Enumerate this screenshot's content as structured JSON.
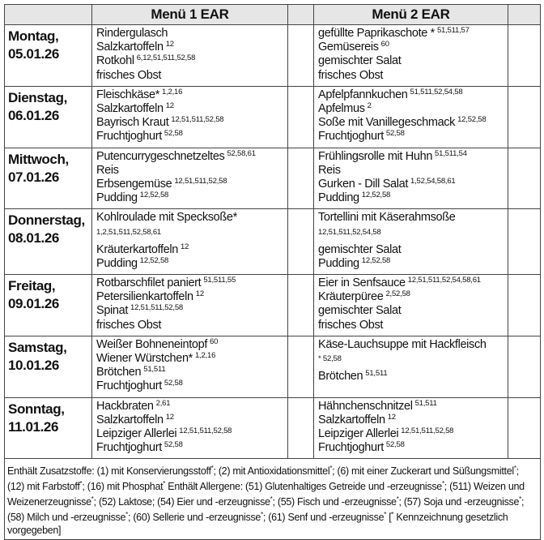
{
  "header": {
    "menu1": "Menü 1 EAR",
    "menu2": "Menü 2 EAR"
  },
  "days": [
    {
      "day": "Montag,",
      "date": "05.01.26",
      "menu1": [
        {
          "name": "Rindergulasch",
          "codes": ""
        },
        {
          "name": "Salzkartoffeln",
          "codes": "12"
        },
        {
          "name": "Rotkohl",
          "codes": "6,12,51,511,52,58"
        },
        {
          "name": "frisches Obst",
          "codes": ""
        }
      ],
      "menu2": [
        {
          "name": "gefüllte Paprikaschote *",
          "codes": "51,511,57"
        },
        {
          "name": "Gemüsereis",
          "codes": "60"
        },
        {
          "name": "gemischter Salat",
          "codes": ""
        },
        {
          "name": "frisches Obst",
          "codes": ""
        }
      ]
    },
    {
      "day": "Dienstag,",
      "date": "06.01.26",
      "menu1": [
        {
          "name": "Fleischkäse*",
          "codes": "1,2,16"
        },
        {
          "name": "Salzkartoffeln",
          "codes": "12"
        },
        {
          "name": "Bayrisch Kraut",
          "codes": "12,51,511,52,58"
        },
        {
          "name": "Fruchtjoghurt",
          "codes": "52,58"
        }
      ],
      "menu2": [
        {
          "name": "Apfelpfannkuchen",
          "codes": "51,511,52,54,58"
        },
        {
          "name": "Apfelmus",
          "codes": "2"
        },
        {
          "name": "Soße mit Vanillegeschmack",
          "codes": "12,52,58"
        },
        {
          "name": "Fruchtjoghurt",
          "codes": "52,58"
        }
      ]
    },
    {
      "day": "Mittwoch,",
      "date": "07.01.26",
      "menu1": [
        {
          "name": "Putencurrygeschnetzeltes",
          "codes": "52,58,61"
        },
        {
          "name": "Reis",
          "codes": ""
        },
        {
          "name": "Erbsengemüse",
          "codes": "12,51,511,52,58"
        },
        {
          "name": "Pudding",
          "codes": "12,52,58"
        }
      ],
      "menu2": [
        {
          "name": "Frühlingsrolle mit Huhn",
          "codes": "51,511,54"
        },
        {
          "name": "Reis",
          "codes": ""
        },
        {
          "name": "Gurken - Dill Salat",
          "codes": "1,52,54,58,61"
        },
        {
          "name": "Pudding",
          "codes": "12,52,58"
        }
      ]
    },
    {
      "day": "Donnerstag,",
      "date": "08.01.26",
      "menu1": [
        {
          "name": "Kohlroulade mit Specksoße*",
          "codes": "1,2,51,511,52,58,61",
          "wrap": true
        },
        {
          "name": "Kräuterkartoffeln",
          "codes": "12"
        },
        {
          "name": "Pudding",
          "codes": "12,52,58"
        }
      ],
      "menu2": [
        {
          "name": "Tortellini  mit Käserahmsoße",
          "codes": "12,51,511,52,54,58",
          "wrap": true
        },
        {
          "name": "gemischter Salat",
          "codes": ""
        },
        {
          "name": "Pudding",
          "codes": "12,52,58"
        }
      ]
    },
    {
      "day": "Freitag,",
      "date": "09.01.26",
      "menu1": [
        {
          "name": "Rotbarschfilet paniert",
          "codes": "51,511,55"
        },
        {
          "name": "Petersilienkartoffeln",
          "codes": "12"
        },
        {
          "name": "Spinat",
          "codes": "12,51,511,52,58"
        },
        {
          "name": "frisches Obst",
          "codes": ""
        }
      ],
      "menu2": [
        {
          "name": "Eier in Senfsauce",
          "codes": "12,51,511,52,54,58,61"
        },
        {
          "name": "Kräuterpüree",
          "codes": "2,52,58"
        },
        {
          "name": "gemischter Salat",
          "codes": ""
        },
        {
          "name": "frisches Obst",
          "codes": ""
        }
      ]
    },
    {
      "day": "Samstag,",
      "date": "10.01.26",
      "menu1": [
        {
          "name": "Weißer Bohneneintopf",
          "codes": "60"
        },
        {
          "name": "Wiener Würstchen*",
          "codes": "1,2,16"
        },
        {
          "name": "Brötchen",
          "codes": "51,511"
        },
        {
          "name": "Fruchtjoghurt",
          "codes": "52,58"
        }
      ],
      "menu2": [
        {
          "name": "Käse-Lauchsuppe mit Hackfleisch",
          "codes": "* 52,58",
          "wrap": true
        },
        {
          "name": "Brötchen",
          "codes": "51,511"
        }
      ]
    },
    {
      "day": "Sonntag,",
      "date": "11.01.26",
      "menu1": [
        {
          "name": "Hackbraten",
          "codes": "2,61"
        },
        {
          "name": "Salzkartoffeln",
          "codes": "12"
        },
        {
          "name": "Leipziger Allerlei",
          "codes": "12,51,511,52,58"
        },
        {
          "name": "Fruchtjoghurt",
          "codes": "52,58"
        }
      ],
      "menu2": [
        {
          "name": "Hähnchenschnitzel",
          "codes": "51,511"
        },
        {
          "name": "Salzkartoffeln",
          "codes": "12"
        },
        {
          "name": "Leipziger Allerlei",
          "codes": "12,51,511,52,58"
        },
        {
          "name": "Fruchtjoghurt",
          "codes": "52,58"
        }
      ]
    }
  ],
  "footer": "Enthält Zusatzstoffe: (1) mit Konservierungsstoff*; (2) mit Antioxidationsmittel*; (6) mit einer Zuckerart und Süßungsmittel*; (12) mit Farbstoff*; (16) mit Phosphat*   Enthält Allergene: (51) Glutenhaltiges Getreide und -erzeugnisse*; (511) Weizen und Weizenerzeugnisse*; (52) Laktose; (54) Eier und -erzeugnisse*; (55) Fisch und -erzeugnisse*; (57) Soja und -erzeugnisse*; (58) Milch und -erzeugnisse*; (60) Sellerie und -erzeugnisse*; (61) Senf und -erzeugnisse*   [* Kennzeichnung gesetzlich vorgegeben]"
}
